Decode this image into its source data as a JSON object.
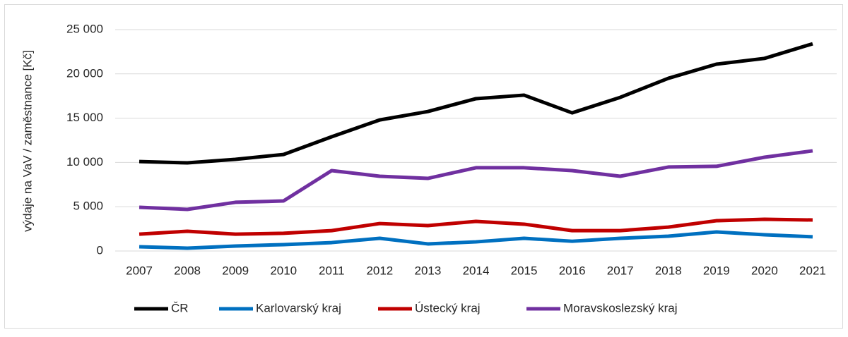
{
  "chart_data": {
    "type": "line",
    "ylabel": "výdaje na VaV / zaměstnance [Kč]",
    "categories": [
      "2007",
      "2008",
      "2009",
      "2010",
      "2011",
      "2012",
      "2013",
      "2014",
      "2015",
      "2016",
      "2017",
      "2018",
      "2019",
      "2020",
      "2021"
    ],
    "series": [
      {
        "name": "ČR",
        "color": "#000000",
        "values": [
          10100,
          9950,
          10350,
          10900,
          12900,
          14800,
          15750,
          17200,
          17600,
          15600,
          17350,
          19500,
          21100,
          21750,
          23400
        ]
      },
      {
        "name": "Karlovarský kraj",
        "color": "#0070c0",
        "values": [
          480,
          320,
          560,
          720,
          950,
          1430,
          800,
          1030,
          1430,
          1100,
          1430,
          1670,
          2150,
          1830,
          1600
        ]
      },
      {
        "name": "Ústecký kraj",
        "color": "#c00000",
        "values": [
          1900,
          2230,
          1900,
          2000,
          2300,
          3100,
          2870,
          3340,
          3030,
          2300,
          2300,
          2700,
          3420,
          3580,
          3500
        ]
      },
      {
        "name": "Moravskoslezský kraj",
        "color": "#7030a0",
        "values": [
          4940,
          4700,
          5500,
          5650,
          9080,
          8440,
          8200,
          9400,
          9400,
          9080,
          8440,
          9480,
          9560,
          10590,
          11310
        ]
      }
    ],
    "ylim": [
      0,
      25000
    ],
    "yticks": [
      {
        "value": 0,
        "label": "0"
      },
      {
        "value": 5000,
        "label": "5 000"
      },
      {
        "value": 10000,
        "label": "10 000"
      },
      {
        "value": 15000,
        "label": "15 000"
      },
      {
        "value": 20000,
        "label": "20 000"
      },
      {
        "value": 25000,
        "label": "25 000"
      }
    ],
    "grid": true,
    "legend": "bottom"
  }
}
